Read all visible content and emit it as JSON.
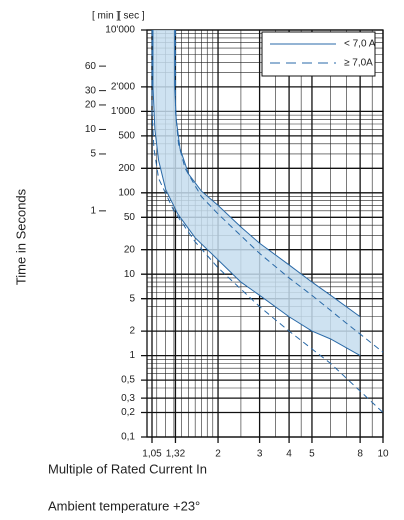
{
  "chart_data": {
    "type": "line",
    "log_x": true,
    "log_y": true,
    "grid": true,
    "y_label": "Time in Seconds",
    "y_label_min": "[ min ]",
    "y_label_sec": "[ sec ]",
    "x_label": "Multiple of Rated Current In",
    "note": "Ambient temperature +23°",
    "xlim": [
      1,
      10
    ],
    "ylim": [
      0.1,
      10000
    ],
    "xticks": [
      {
        "value": 1.05,
        "label": "1,05"
      },
      {
        "value": 1.32,
        "label": "1,32"
      },
      2,
      3,
      4,
      5,
      8,
      10
    ],
    "yticks": [
      {
        "value": 10000,
        "label": "10'000"
      },
      {
        "value": 2000,
        "label": "2'000"
      },
      {
        "value": 1000,
        "label": "1'000"
      },
      500,
      200,
      100,
      50,
      20,
      10,
      5,
      2,
      1,
      {
        "value": 0.5,
        "label": "0,5"
      },
      {
        "value": 0.3,
        "label": "0,3"
      },
      {
        "value": 0.2,
        "label": "0,2"
      },
      {
        "value": 0.1,
        "label": "0,1"
      }
    ],
    "min_ticks": [
      {
        "value": 3600,
        "label": "60"
      },
      {
        "value": 1800,
        "label": "30"
      },
      {
        "value": 1200,
        "label": "20"
      },
      {
        "value": 600,
        "label": "10"
      },
      {
        "value": 300,
        "label": "5"
      },
      {
        "value": 60,
        "label": "1"
      }
    ],
    "legend": "upper right",
    "series": [
      {
        "name": "< 7,0 A",
        "color": "#2a6aa8",
        "dashed": false,
        "fill": "#c6ddef",
        "curves": [
          {
            "x": [
              1.31,
              1.31,
              1.33,
              1.38,
              1.5,
              1.7,
              2,
              2.5,
              3,
              4,
              5,
              6,
              8
            ],
            "values": [
              10000,
              2000,
              800,
              350,
              170,
              105,
              70,
              38,
              24,
              13,
              8,
              5.5,
              3
            ]
          },
          {
            "x": [
              1.06,
              1.06,
              1.08,
              1.12,
              1.2,
              1.35,
              1.6,
              2,
              2.5,
              3,
              4,
              5,
              6,
              8
            ],
            "values": [
              10000,
              2000,
              600,
              250,
              110,
              55,
              28,
              15,
              8,
              5.5,
              3,
              2,
              1.6,
              1
            ]
          }
        ]
      },
      {
        "name": "≥ 7,0A",
        "color": "#2a6aa8",
        "dashed": true,
        "curves": [
          {
            "x": [
              1.32,
              1.32,
              1.36,
              1.45,
              1.7,
              2,
              3,
              4,
              5,
              7,
              10
            ],
            "values": [
              10000,
              1000,
              400,
              200,
              90,
              55,
              18,
              9,
              5.5,
              2.5,
              1.1
            ]
          },
          {
            "x": [
              1.05,
              1.05,
              1.07,
              1.12,
              1.3,
              1.6,
              2,
              3,
              4,
              6,
              10
            ],
            "values": [
              10000,
              1000,
              350,
              150,
              60,
              25,
              12,
              4,
              2,
              0.8,
              0.2
            ]
          }
        ]
      }
    ]
  }
}
